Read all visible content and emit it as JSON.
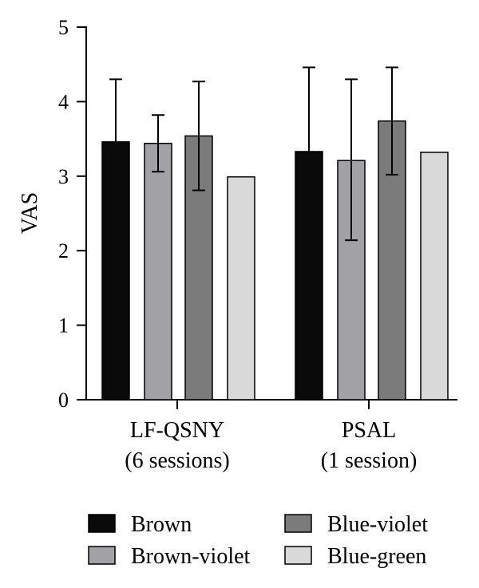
{
  "chart_data": {
    "type": "bar",
    "ylabel": "VAS",
    "xlabel": "",
    "ylim": [
      0,
      5
    ],
    "yticks": [
      0,
      1,
      2,
      3,
      4,
      5
    ],
    "grid": false,
    "legend_position": "bottom",
    "categories": [
      {
        "line1": "LF-QSNY",
        "line2": "(6 sessions)"
      },
      {
        "line1": "PSAL",
        "line2": "(1 session)"
      }
    ],
    "series": [
      {
        "name": "Brown",
        "color": "#0a0a0a",
        "values": [
          3.46,
          3.33
        ],
        "err_upper": [
          4.3,
          4.46
        ],
        "err_lower": [
          null,
          null
        ]
      },
      {
        "name": "Brown-violet",
        "color": "#a2a2a6",
        "values": [
          3.44,
          3.21
        ],
        "err_upper": [
          3.82,
          4.3
        ],
        "err_lower": [
          3.06,
          2.14
        ]
      },
      {
        "name": "Blue-violet",
        "color": "#7b7b7b",
        "values": [
          3.54,
          3.74
        ],
        "err_upper": [
          4.27,
          4.46
        ],
        "err_lower": [
          2.81,
          3.02
        ]
      },
      {
        "name": "Blue-green",
        "color": "#d9d9d9",
        "values": [
          2.99,
          3.32
        ],
        "err_upper": [
          null,
          null
        ],
        "err_lower": [
          null,
          null
        ]
      }
    ]
  }
}
